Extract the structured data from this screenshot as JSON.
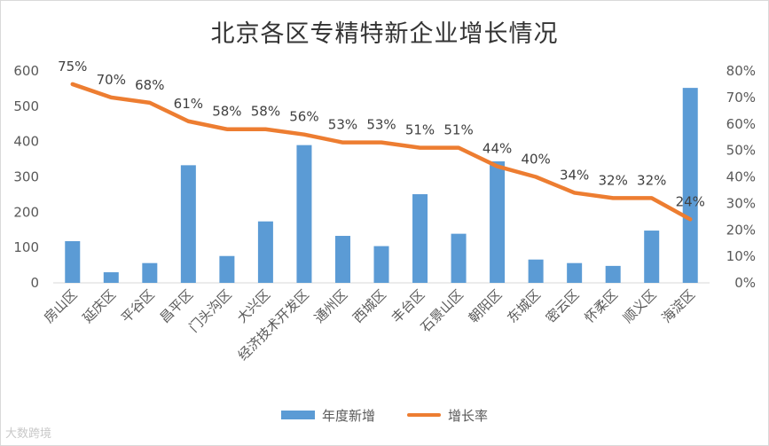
{
  "chart_data": {
    "type": "bar",
    "title": "北京各区专精特新企业增长情况",
    "categories": [
      "房山区",
      "延庆区",
      "平谷区",
      "昌平区",
      "门头沟区",
      "大兴区",
      "经济技术开发区",
      "通州区",
      "西城区",
      "丰台区",
      "石景山区",
      "朝阳区",
      "东城区",
      "密云区",
      "怀柔区",
      "顺义区",
      "海淀区"
    ],
    "series": [
      {
        "name": "年度新增",
        "type": "bar",
        "axis": "left",
        "color": "#5b9bd5",
        "values": [
          118,
          30,
          56,
          333,
          76,
          174,
          390,
          133,
          104,
          251,
          139,
          344,
          66,
          56,
          48,
          148,
          552
        ]
      },
      {
        "name": "增长率",
        "type": "line",
        "axis": "right",
        "color": "#ed7d31",
        "values": [
          75,
          70,
          68,
          61,
          58,
          58,
          56,
          53,
          53,
          51,
          51,
          44,
          40,
          34,
          32,
          32,
          24
        ],
        "labels": [
          "75%",
          "70%",
          "68%",
          "61%",
          "58%",
          "58%",
          "56%",
          "53%",
          "53%",
          "51%",
          "51%",
          "44%",
          "40%",
          "34%",
          "32%",
          "32%",
          "24%"
        ]
      }
    ],
    "y_left": {
      "min": 0,
      "max": 600,
      "ticks": [
        "0",
        "100",
        "200",
        "300",
        "400",
        "500",
        "600"
      ]
    },
    "y_right": {
      "min": 0,
      "max": 80,
      "ticks": [
        "0%",
        "10%",
        "20%",
        "30%",
        "40%",
        "50%",
        "60%",
        "70%",
        "80%"
      ]
    },
    "grid": false,
    "legend": "bottom"
  },
  "watermark": "大数跨境"
}
